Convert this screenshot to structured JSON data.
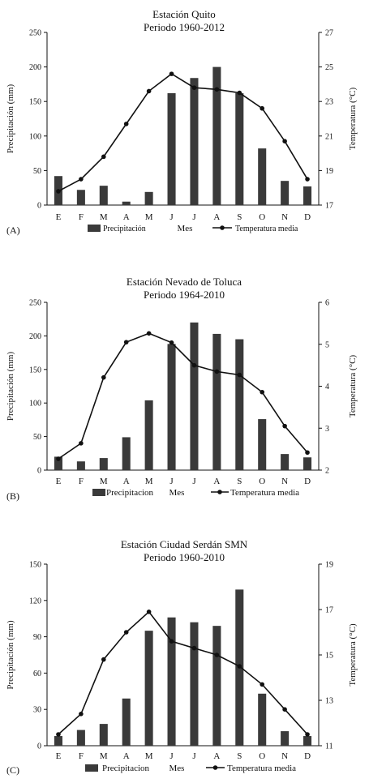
{
  "chart_data": [
    {
      "type": "bar+line",
      "panel_label": "(A)",
      "title_lines": [
        "Estación Quito",
        "Periodo 1960-2012"
      ],
      "xlabel": "Mes",
      "ylabel_left": "Precipitación (mm)",
      "ylabel_right": "Temperatura (°C)",
      "categories": [
        "E",
        "F",
        "M",
        "A",
        "M",
        "J",
        "J",
        "A",
        "S",
        "O",
        "N",
        "D"
      ],
      "ylim_left": [
        0,
        250
      ],
      "yticks_left": [
        0,
        50,
        100,
        150,
        200,
        250
      ],
      "ylim_right": [
        17,
        27
      ],
      "yticks_right": [
        17,
        19,
        21,
        23,
        25,
        27
      ],
      "legend_bar": "Precipitación",
      "legend_line": "Temperatura media",
      "bar_values": [
        42,
        22,
        28,
        5,
        19,
        162,
        184,
        200,
        162,
        82,
        35,
        27
      ],
      "line_values": [
        17.8,
        18.5,
        19.8,
        21.7,
        23.6,
        24.6,
        23.8,
        23.7,
        23.5,
        22.6,
        20.7,
        18.5
      ],
      "grid": false,
      "legend_position": "bottom"
    },
    {
      "type": "bar+line",
      "panel_label": "(B)",
      "title_lines": [
        "Estación Nevado de Toluca",
        "Periodo 1964-2010"
      ],
      "xlabel": "Mes",
      "ylabel_left": "Precipitación (mm)",
      "ylabel_right": "Temperatura (°C)",
      "categories": [
        "E",
        "F",
        "M",
        "A",
        "M",
        "J",
        "J",
        "A",
        "S",
        "O",
        "N",
        "D"
      ],
      "ylim_left": [
        0,
        250
      ],
      "yticks_left": [
        0,
        50,
        100,
        150,
        200,
        250
      ],
      "ylim_right": [
        2,
        6
      ],
      "yticks_right": [
        2,
        3,
        4,
        5,
        6
      ],
      "legend_bar": "Precipitacion",
      "legend_line": "Temperatura media",
      "bar_values": [
        20,
        13,
        18,
        49,
        104,
        188,
        220,
        203,
        195,
        76,
        24,
        19
      ],
      "line_values": [
        2.27,
        2.64,
        4.21,
        5.05,
        5.26,
        5.04,
        4.5,
        4.35,
        4.27,
        3.86,
        3.05,
        2.42
      ],
      "grid": false,
      "legend_position": "bottom"
    },
    {
      "type": "bar+line",
      "panel_label": "(C)",
      "title_lines": [
        "Estación Ciudad Serdán SMN",
        "Periodo 1960-2010"
      ],
      "xlabel": "Mes",
      "ylabel_left": "Precipitación (mm)",
      "ylabel_right": "Temperatura (°C)",
      "categories": [
        "E",
        "F",
        "M",
        "A",
        "M",
        "J",
        "J",
        "A",
        "S",
        "O",
        "N",
        "D"
      ],
      "ylim_left": [
        0,
        150
      ],
      "yticks_left": [
        0,
        30,
        60,
        90,
        120,
        150
      ],
      "ylim_right": [
        11,
        19
      ],
      "yticks_right": [
        11,
        13,
        15,
        17,
        19
      ],
      "legend_bar": "Precipitacion",
      "legend_line": "Temperatura media",
      "bar_values": [
        8,
        13,
        18,
        39,
        95,
        106,
        102,
        99,
        129,
        43,
        12,
        8
      ],
      "line_values": [
        11.5,
        12.4,
        14.8,
        16.0,
        16.9,
        15.6,
        15.3,
        15.0,
        14.5,
        13.7,
        12.6,
        11.5
      ],
      "grid": false,
      "legend_position": "bottom"
    }
  ],
  "colors": {
    "bar": "#3a3a3a",
    "line": "#111111",
    "axis": "#111111"
  }
}
